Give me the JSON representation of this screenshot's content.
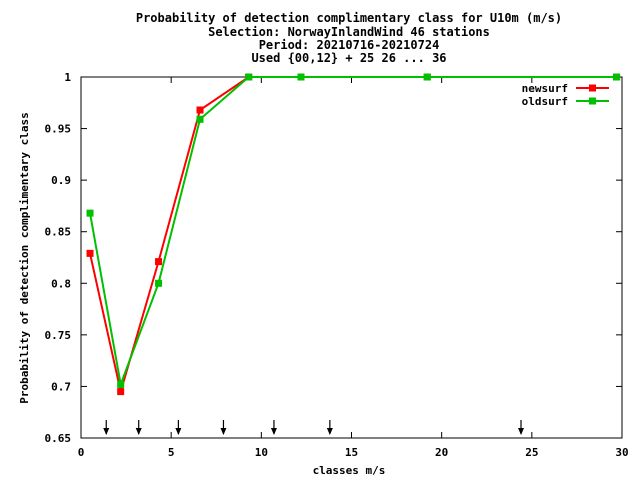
{
  "chart_data": {
    "type": "line",
    "title_lines": [
      "Probability of detection complimentary class  for U10m (m/s)",
      "Selection: NorwayInlandWind     46 stations",
      "Period: 20210716-20210724",
      "Used {00,12} + 25 26 ... 36"
    ],
    "xlabel": "classes m/s",
    "ylabel": "Probability of detection complimentary class",
    "xlim": [
      0,
      30
    ],
    "ylim": [
      0.65,
      1.0
    ],
    "xticks": [
      0,
      5,
      10,
      15,
      20,
      25,
      30
    ],
    "yticks": [
      0.65,
      0.7,
      0.75,
      0.8,
      0.85,
      0.9,
      0.95,
      1.0
    ],
    "ytick_labels": [
      "0.65",
      "0.7",
      "0.75",
      "0.8",
      "0.85",
      "0.9",
      "0.95",
      "1"
    ],
    "legend_position": "top-right",
    "class_markers_x": [
      1.4,
      3.2,
      5.4,
      7.9,
      10.7,
      13.8,
      24.4
    ],
    "series": [
      {
        "name": "newsurf",
        "color": "#ff0000",
        "x": [
          0.5,
          2.2,
          4.3,
          6.6,
          9.3,
          12.2,
          19.2,
          29.7
        ],
        "y": [
          0.829,
          0.695,
          0.821,
          0.968,
          1.0,
          1.0,
          1.0,
          1.0
        ]
      },
      {
        "name": "oldsurf",
        "color": "#00c000",
        "x": [
          0.5,
          2.2,
          4.3,
          6.6,
          9.3,
          12.2,
          19.2,
          29.7
        ],
        "y": [
          0.868,
          0.702,
          0.8,
          0.959,
          1.0,
          1.0,
          1.0,
          1.0
        ]
      }
    ]
  }
}
